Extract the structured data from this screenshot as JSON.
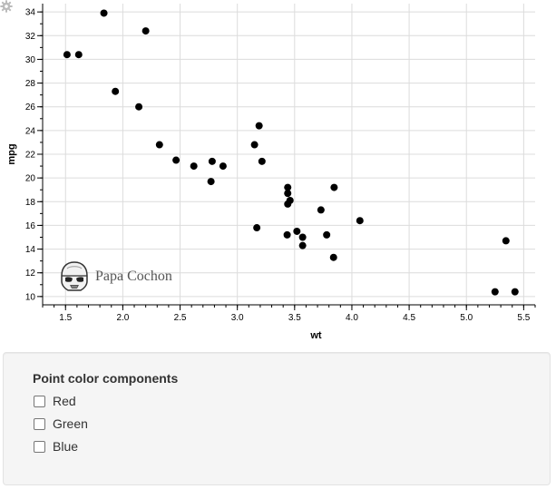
{
  "chart_data": {
    "type": "scatter",
    "xlabel": "wt",
    "ylabel": "mpg",
    "xlim": [
      1.3,
      5.6
    ],
    "ylim": [
      9.3,
      34.7
    ],
    "xticks": [
      1.5,
      2.0,
      2.5,
      3.0,
      3.5,
      4.0,
      4.5,
      5.0,
      5.5
    ],
    "xtick_labels": [
      "1.5",
      "2.0",
      "2.5",
      "3.0",
      "3.5",
      "4.0",
      "4.5",
      "5.0",
      "5.5"
    ],
    "yticks": [
      10,
      12,
      14,
      16,
      18,
      20,
      22,
      24,
      26,
      28,
      30,
      32,
      34
    ],
    "ytick_labels": [
      "10",
      "12",
      "14",
      "16",
      "18",
      "20",
      "22",
      "24",
      "26",
      "28",
      "30",
      "32",
      "34"
    ],
    "grid": true,
    "point_color": "#000000",
    "points": [
      {
        "x": 2.62,
        "y": 21.0
      },
      {
        "x": 2.875,
        "y": 21.0
      },
      {
        "x": 2.32,
        "y": 22.8
      },
      {
        "x": 3.215,
        "y": 21.4
      },
      {
        "x": 3.44,
        "y": 18.7
      },
      {
        "x": 3.46,
        "y": 18.1
      },
      {
        "x": 3.57,
        "y": 14.3
      },
      {
        "x": 3.19,
        "y": 24.4
      },
      {
        "x": 3.15,
        "y": 22.8
      },
      {
        "x": 3.44,
        "y": 19.2
      },
      {
        "x": 3.44,
        "y": 17.8
      },
      {
        "x": 4.07,
        "y": 16.4
      },
      {
        "x": 3.73,
        "y": 17.3
      },
      {
        "x": 3.78,
        "y": 15.2
      },
      {
        "x": 5.25,
        "y": 10.4
      },
      {
        "x": 5.424,
        "y": 10.4
      },
      {
        "x": 5.345,
        "y": 14.7
      },
      {
        "x": 2.2,
        "y": 32.4
      },
      {
        "x": 1.615,
        "y": 30.4
      },
      {
        "x": 1.835,
        "y": 33.9
      },
      {
        "x": 2.465,
        "y": 21.5
      },
      {
        "x": 3.52,
        "y": 15.5
      },
      {
        "x": 3.435,
        "y": 15.2
      },
      {
        "x": 3.84,
        "y": 13.3
      },
      {
        "x": 3.845,
        "y": 19.2
      },
      {
        "x": 1.935,
        "y": 27.3
      },
      {
        "x": 2.14,
        "y": 26.0
      },
      {
        "x": 1.513,
        "y": 30.4
      },
      {
        "x": 3.17,
        "y": 15.8
      },
      {
        "x": 2.77,
        "y": 19.7
      },
      {
        "x": 3.57,
        "y": 15.0
      },
      {
        "x": 2.78,
        "y": 21.4
      }
    ]
  },
  "watermark": {
    "text": "Papa Cochon"
  },
  "icons": {
    "settings": "gear-icon",
    "watermark": "stormtrooper-icon"
  },
  "controls": {
    "title": "Point color components",
    "options": [
      {
        "label": "Red",
        "checked": false
      },
      {
        "label": "Green",
        "checked": false
      },
      {
        "label": "Blue",
        "checked": false
      }
    ]
  }
}
